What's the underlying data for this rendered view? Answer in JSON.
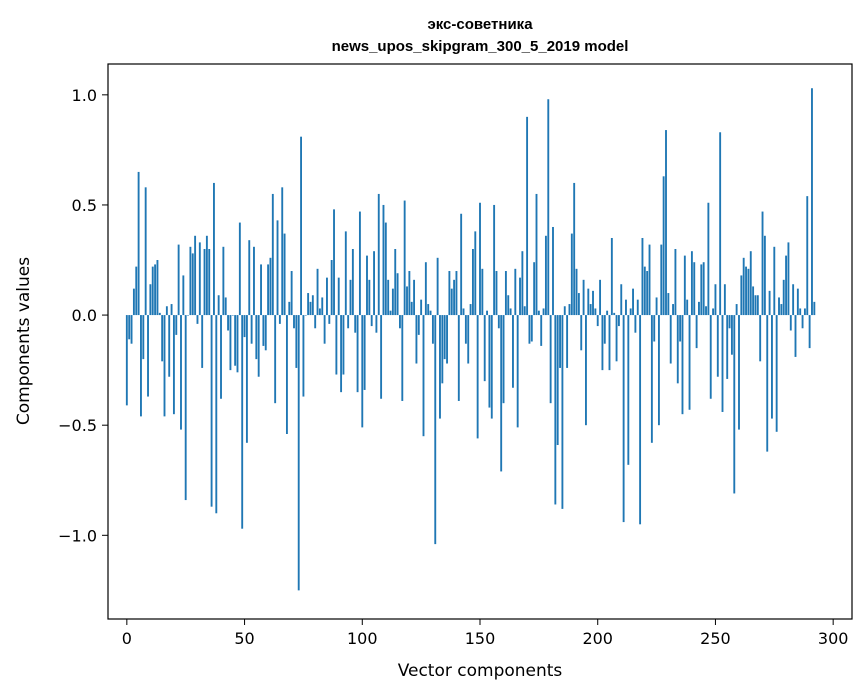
{
  "chart_data": {
    "type": "bar",
    "title": "экс-советника",
    "subtitle": "news_upos_skipgram_300_5_2019 model",
    "xlabel": "Vector components",
    "ylabel": "Components values",
    "xlim": [
      -8,
      308
    ],
    "ylim": [
      -1.38,
      1.14
    ],
    "xticks": [
      0,
      50,
      100,
      150,
      200,
      250,
      300
    ],
    "yticks": [
      1.0,
      0.5,
      0.0,
      -0.5,
      -1.0
    ],
    "ytick_labels": [
      "1.0",
      "0.5",
      "0.0",
      "−0.5",
      "−1.0"
    ],
    "bar_color": "#1f77b4",
    "grid": false,
    "categories_count": 300,
    "values": [
      -0.41,
      -0.11,
      -0.13,
      0.12,
      0.22,
      0.65,
      -0.46,
      -0.2,
      0.58,
      -0.37,
      0.14,
      0.22,
      0.23,
      0.25,
      0.01,
      -0.21,
      -0.46,
      0.04,
      -0.28,
      0.05,
      -0.45,
      -0.09,
      0.32,
      -0.52,
      0.18,
      -0.84,
      0.0,
      0.31,
      0.28,
      0.36,
      -0.04,
      0.33,
      -0.24,
      0.3,
      0.36,
      0.3,
      -0.87,
      0.6,
      -0.9,
      0.09,
      -0.38,
      0.31,
      0.08,
      -0.07,
      -0.25,
      0.0,
      -0.23,
      -0.26,
      0.42,
      -0.97,
      -0.1,
      -0.58,
      0.34,
      -0.13,
      0.31,
      -0.2,
      -0.28,
      0.23,
      -0.14,
      -0.16,
      0.23,
      0.26,
      0.55,
      -0.4,
      0.43,
      -0.04,
      0.58,
      0.37,
      -0.54,
      0.06,
      0.2,
      -0.06,
      -0.24,
      -1.25,
      0.81,
      -0.37,
      0.0,
      0.1,
      0.06,
      0.09,
      -0.06,
      0.21,
      0.03,
      0.08,
      -0.13,
      0.17,
      -0.04,
      0.25,
      0.48,
      -0.27,
      0.17,
      -0.35,
      -0.27,
      0.38,
      -0.06,
      0.16,
      0.3,
      -0.08,
      -0.35,
      0.47,
      -0.51,
      -0.34,
      0.27,
      0.16,
      -0.05,
      0.29,
      -0.08,
      0.55,
      -0.38,
      0.5,
      0.42,
      0.16,
      0.02,
      0.12,
      0.3,
      0.19,
      -0.06,
      -0.39,
      0.52,
      0.13,
      0.2,
      0.06,
      0.16,
      -0.22,
      -0.09,
      0.07,
      -0.55,
      0.24,
      0.05,
      0.02,
      -0.13,
      -1.04,
      0.26,
      -0.47,
      -0.31,
      -0.2,
      -0.22,
      0.2,
      0.12,
      0.16,
      0.2,
      -0.39,
      0.46,
      0.03,
      -0.13,
      -0.22,
      0.05,
      0.3,
      0.38,
      -0.56,
      0.51,
      0.21,
      -0.3,
      0.02,
      -0.42,
      -0.47,
      0.5,
      0.2,
      -0.06,
      -0.71,
      -0.4,
      0.2,
      0.09,
      0.03,
      -0.33,
      0.21,
      -0.51,
      0.17,
      0.29,
      0.04,
      0.9,
      -0.13,
      -0.12,
      0.24,
      0.55,
      0.02,
      -0.14,
      0.03,
      0.36,
      0.98,
      -0.4,
      0.4,
      -0.86,
      -0.59,
      -0.24,
      -0.88,
      0.04,
      -0.24,
      0.05,
      0.37,
      0.6,
      0.21,
      0.1,
      -0.16,
      0.16,
      -0.5,
      0.12,
      0.05,
      0.11,
      0.03,
      -0.05,
      0.16,
      -0.25,
      -0.13,
      0.02,
      -0.25,
      0.35,
      0.01,
      -0.21,
      -0.05,
      0.14,
      -0.94,
      0.07,
      -0.68,
      0.03,
      0.12,
      -0.08,
      0.07,
      -0.95,
      0.35,
      0.22,
      0.2,
      0.32,
      -0.58,
      -0.12,
      0.08,
      -0.5,
      0.32,
      0.63,
      0.84,
      0.1,
      -0.22,
      0.05,
      0.3,
      -0.31,
      -0.12,
      -0.45,
      0.27,
      0.07,
      -0.43,
      0.29,
      0.24,
      -0.15,
      0.06,
      0.23,
      0.24,
      0.04,
      0.51,
      -0.38,
      0.03,
      0.14,
      -0.28,
      0.83,
      -0.44,
      0.14,
      -0.29,
      -0.06,
      -0.18,
      -0.81,
      0.05,
      -0.52,
      0.18,
      0.26,
      0.22,
      0.21,
      0.29,
      0.13,
      0.09,
      0.09,
      -0.21,
      0.47,
      0.36,
      -0.62,
      0.11,
      -0.47,
      0.31,
      -0.53,
      0.08,
      0.05,
      0.16,
      0.27,
      0.33,
      -0.07,
      0.14,
      -0.19,
      0.12,
      0.03,
      -0.06,
      0.03,
      0.54,
      -0.15,
      1.03,
      0.06
    ]
  }
}
